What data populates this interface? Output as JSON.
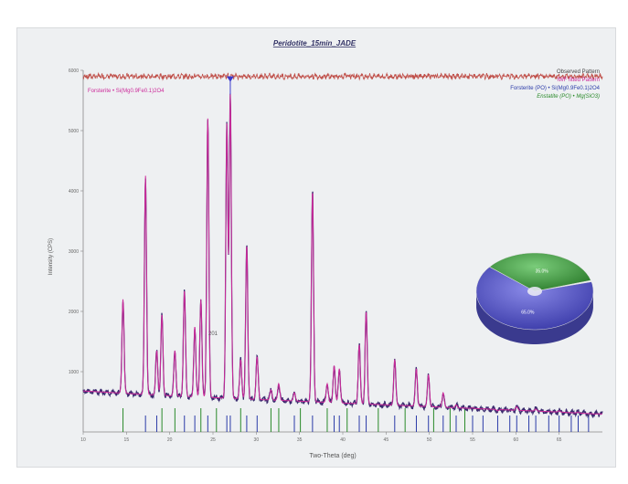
{
  "chart_data": {
    "type": "line",
    "title": "Peridotite_15min_JADE",
    "xlabel": "Two-Theta (deg)",
    "ylabel": "Intensity (CPS)",
    "xlim": [
      10,
      70
    ],
    "ylim": [
      0,
      6000
    ],
    "x_ticks": [
      "10",
      "15",
      "20",
      "25",
      "30",
      "35",
      "40",
      "45",
      "50",
      "55",
      "60",
      "65"
    ],
    "y_ticks": [
      "1000",
      "2000",
      "3000",
      "4000",
      "5000",
      "6000"
    ],
    "legend": {
      "placement": "top-right",
      "entries": [
        "Observed Pattern",
        "IWF fitted Pattern",
        "Forsterite (PO) • Si(Mg0.9Fe0.1)2O4",
        "Enstatite (PO) • Mg(SiO3)"
      ]
    },
    "phase_label": "Forsterite • Si(Mg0.9Fe0.1)2O4",
    "marker_label": "201",
    "colors": {
      "observed": "#3a2a6e",
      "fitted": "#cc2a9a",
      "residual": "#c0504a",
      "forsterite": "#2a3aa8",
      "enstatite": "#2a8a2a",
      "peak_marker": "#3a3acc"
    },
    "background": {
      "x": [
        10,
        15,
        20,
        25,
        30,
        35,
        40,
        45,
        50,
        55,
        60,
        65,
        69
      ],
      "y": [
        680,
        640,
        600,
        570,
        540,
        510,
        480,
        450,
        420,
        390,
        360,
        330,
        300
      ]
    },
    "peaks": [
      {
        "x": 14.6,
        "y": 2200
      },
      {
        "x": 17.2,
        "y": 4250
      },
      {
        "x": 18.5,
        "y": 1350
      },
      {
        "x": 19.1,
        "y": 1950
      },
      {
        "x": 20.6,
        "y": 1350
      },
      {
        "x": 21.7,
        "y": 2350
      },
      {
        "x": 22.9,
        "y": 1750
      },
      {
        "x": 23.6,
        "y": 2200
      },
      {
        "x": 24.4,
        "y": 5200
      },
      {
        "x": 26.6,
        "y": 5100
      },
      {
        "x": 27.0,
        "y": 5600
      },
      {
        "x": 28.2,
        "y": 1200
      },
      {
        "x": 28.9,
        "y": 3100
      },
      {
        "x": 30.1,
        "y": 1250
      },
      {
        "x": 31.7,
        "y": 700
      },
      {
        "x": 32.6,
        "y": 800
      },
      {
        "x": 34.4,
        "y": 650
      },
      {
        "x": 36.5,
        "y": 4000
      },
      {
        "x": 38.2,
        "y": 800
      },
      {
        "x": 39.0,
        "y": 1100
      },
      {
        "x": 39.6,
        "y": 1050
      },
      {
        "x": 41.9,
        "y": 1450
      },
      {
        "x": 42.7,
        "y": 2000
      },
      {
        "x": 46.0,
        "y": 1200
      },
      {
        "x": 48.5,
        "y": 1050
      },
      {
        "x": 49.9,
        "y": 950
      },
      {
        "x": 51.6,
        "y": 650
      },
      {
        "x": 53.1,
        "y": 450
      },
      {
        "x": 55.0,
        "y": 400
      },
      {
        "x": 57.9,
        "y": 350
      },
      {
        "x": 60.1,
        "y": 420
      },
      {
        "x": 62.3,
        "y": 380
      },
      {
        "x": 65.0,
        "y": 350
      },
      {
        "x": 67.2,
        "y": 330
      }
    ],
    "forsterite_sticks": [
      17.2,
      18.5,
      21.7,
      22.9,
      24.4,
      26.6,
      27.0,
      28.9,
      30.1,
      34.4,
      36.5,
      39.0,
      39.6,
      41.9,
      42.7,
      46.0,
      48.5,
      49.9,
      51.6,
      53.1,
      55.0,
      56.2,
      57.9,
      59.3,
      60.1,
      61.5,
      62.3,
      63.8,
      65.0,
      66.4,
      67.2,
      68.4
    ],
    "enstatite_sticks": [
      14.6,
      19.1,
      20.6,
      23.6,
      25.4,
      28.2,
      31.7,
      32.6,
      35.1,
      38.2,
      40.5,
      44.1,
      47.2,
      50.5,
      52.4,
      54.1
    ],
    "pie": {
      "labels": [
        "65.0%",
        "35.0%"
      ],
      "values": [
        65.0,
        35.0
      ],
      "colors": [
        "#5a5ad0",
        "#4aa04a"
      ]
    }
  }
}
